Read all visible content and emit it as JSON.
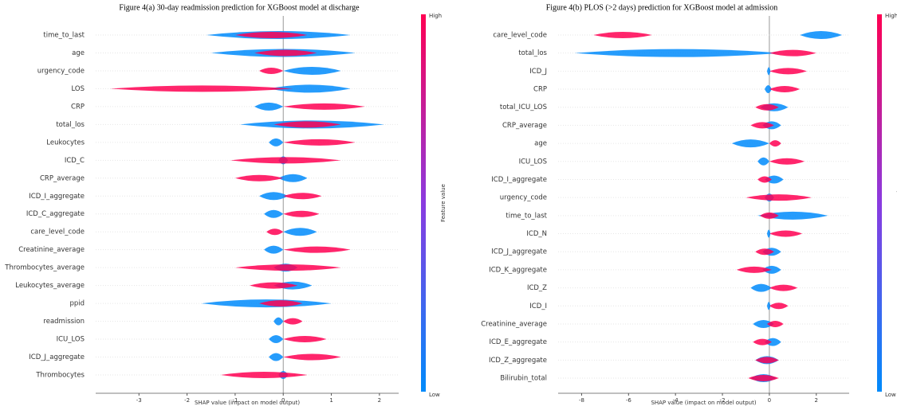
{
  "chart_data": [
    {
      "type": "beeswarm",
      "title": "Figure 4(a) 30-day readmission prediction for XGBoost model at discharge",
      "x_label": "SHAP value (impact on model output)",
      "colorbar_label": "Feature value",
      "categories": [
        "time_to_last",
        "age",
        "urgency_code",
        "LOS",
        "CRP",
        "total_los",
        "Leukocytes",
        "ICD_C",
        "CRP_average",
        "ICD_I_aggregate",
        "ICD_C_aggregate",
        "care_level_code",
        "Creatinine_average",
        "Thrombocytes_average",
        "Leukocytes_average",
        "ppid",
        "readmission",
        "ICU_LOS",
        "ICD_J_aggregate",
        "Thrombocytes"
      ],
      "series": [
        {
          "name": "Low",
          "color": "#008bfb",
          "values": [
            [
              -1.6,
              1.4
            ],
            [
              -1.5,
              1.5
            ],
            [
              0,
              1.2
            ],
            [
              -0.3,
              1.4
            ],
            [
              -0.6,
              0
            ],
            [
              -0.9,
              2.1
            ],
            [
              -0.3,
              0
            ],
            [
              -0.1,
              0.1
            ],
            [
              -0.1,
              0.5
            ],
            [
              -0.5,
              0.1
            ],
            [
              -0.4,
              0
            ],
            [
              0,
              0.7
            ],
            [
              -0.4,
              0
            ],
            [
              -0.2,
              0.3
            ],
            [
              -0.2,
              0.6
            ],
            [
              -1.7,
              1.0
            ],
            [
              -0.2,
              0
            ],
            [
              -0.3,
              0
            ],
            [
              -0.3,
              0
            ],
            [
              -0.1,
              0.1
            ]
          ]
        },
        {
          "name": "High",
          "color": "#ff0052",
          "values": [
            [
              -1.0,
              0.5
            ],
            [
              -0.6,
              0.7
            ],
            [
              -0.5,
              0
            ],
            [
              -3.6,
              0.2
            ],
            [
              0,
              1.7
            ],
            [
              -0.2,
              1.2
            ],
            [
              0,
              1.5
            ],
            [
              -1.1,
              1.2
            ],
            [
              -1.0,
              0
            ],
            [
              0,
              0.8
            ],
            [
              0,
              0.75
            ],
            [
              -0.35,
              0
            ],
            [
              0,
              1.4
            ],
            [
              -1.0,
              1.2
            ],
            [
              -0.7,
              0.3
            ],
            [
              -0.5,
              0.4
            ],
            [
              0,
              0.4
            ],
            [
              0,
              0.9
            ],
            [
              0,
              1.2
            ],
            [
              -1.3,
              0.5
            ]
          ]
        }
      ],
      "xlim": [
        -3.9,
        2.4
      ],
      "xticks": [
        -3,
        -2,
        -1,
        0,
        1,
        2
      ]
    },
    {
      "type": "beeswarm",
      "title": "Figure 4(b) PLOS (>2 days) prediction for XGBoost model at admission",
      "x_label": "SHAP value (impact on model output)",
      "colorbar_label": "Feature value",
      "categories": [
        "care_level_code",
        "total_los",
        "ICD_J",
        "CRP",
        "total_ICU_LOS",
        "CRP_average",
        "age",
        "ICU_LOS",
        "ICD_I_aggregate",
        "urgency_code",
        "time_to_last",
        "ICD_N",
        "ICD_J_aggregate",
        "ICD_K_aggregate",
        "ICD_Z",
        "ICD_I",
        "Creatinine_average",
        "ICD_E_aggregate",
        "ICD_Z_aggregate",
        "Bilirubin_total"
      ],
      "series": [
        {
          "name": "Low",
          "color": "#008bfb",
          "values": [
            [
              1.3,
              3.1
            ],
            [
              -8.3,
              0.5
            ],
            [
              -0.1,
              0.05
            ],
            [
              -0.2,
              0.1
            ],
            [
              -0.4,
              0.8
            ],
            [
              -0.3,
              0.5
            ],
            [
              -1.6,
              0
            ],
            [
              -0.5,
              0
            ],
            [
              -0.2,
              0.6
            ],
            [
              -0.2,
              0.2
            ],
            [
              -0.5,
              2.5
            ],
            [
              -0.1,
              0.05
            ],
            [
              -0.3,
              0.5
            ],
            [
              -0.3,
              0.5
            ],
            [
              -0.8,
              0.1
            ],
            [
              -0.1,
              0.05
            ],
            [
              -0.7,
              0.2
            ],
            [
              -0.2,
              0.5
            ],
            [
              -0.6,
              0.4
            ],
            [
              -0.8,
              0.3
            ]
          ]
        },
        {
          "name": "High",
          "color": "#ff0052",
          "values": [
            [
              -7.5,
              -5.0
            ],
            [
              0,
              2.0
            ],
            [
              0,
              1.6
            ],
            [
              0,
              1.3
            ],
            [
              -0.6,
              0.4
            ],
            [
              -0.8,
              0.2
            ],
            [
              0,
              0.5
            ],
            [
              0,
              1.5
            ],
            [
              -0.5,
              0.1
            ],
            [
              -1.0,
              1.8
            ],
            [
              -0.4,
              0.4
            ],
            [
              0,
              1.4
            ],
            [
              -0.6,
              0.2
            ],
            [
              -1.4,
              0.1
            ],
            [
              0,
              1.2
            ],
            [
              0,
              0.8
            ],
            [
              -0.1,
              0.6
            ],
            [
              -0.7,
              0.1
            ],
            [
              -0.6,
              0.4
            ],
            [
              -0.9,
              0.4
            ]
          ]
        }
      ],
      "xlim": [
        -9,
        3.4
      ],
      "xticks": [
        -8,
        -6,
        -4,
        -2,
        0,
        2
      ]
    }
  ]
}
